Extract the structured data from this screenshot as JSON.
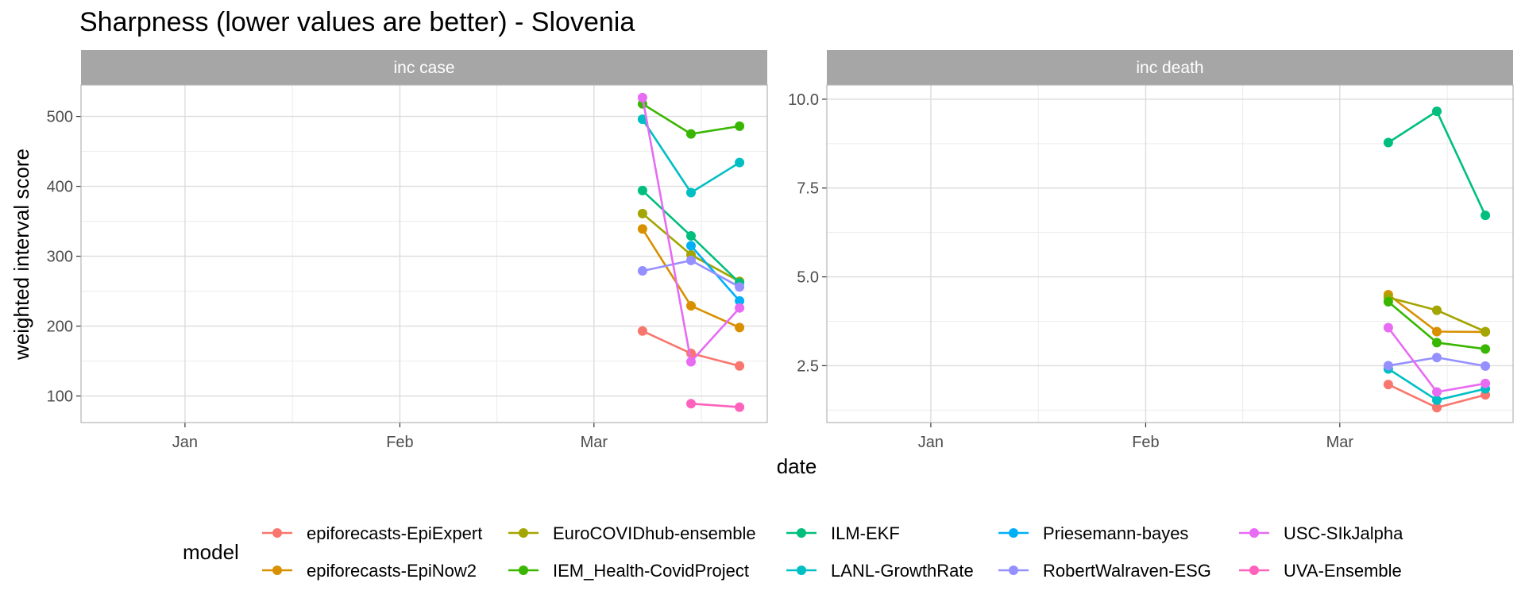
{
  "chart_data": {
    "type": "line",
    "title": "Sharpness (lower values are better) - Slovenia",
    "xlabel": "date",
    "ylabel": "weighted interval score",
    "legend_title": "model",
    "legend_position": "bottom",
    "grid": true,
    "xlim": [
      "2020-12-17",
      "2021-03-26"
    ],
    "x_ticks": [
      {
        "date": "2021-01-01",
        "label": "Jan"
      },
      {
        "date": "2021-02-01",
        "label": "Feb"
      },
      {
        "date": "2021-03-01",
        "label": "Mar"
      }
    ],
    "models": [
      {
        "name": "epiforecasts-EpiExpert",
        "color": "#F8766D"
      },
      {
        "name": "epiforecasts-EpiNow2",
        "color": "#D89000"
      },
      {
        "name": "EuroCOVIDhub-ensemble",
        "color": "#A3A500"
      },
      {
        "name": "IEM_Health-CovidProject",
        "color": "#39B600"
      },
      {
        "name": "ILM-EKF",
        "color": "#00BF7D"
      },
      {
        "name": "LANL-GrowthRate",
        "color": "#00BFC4"
      },
      {
        "name": "Priesemann-bayes",
        "color": "#00B0F6"
      },
      {
        "name": "RobertWalraven-ESG",
        "color": "#9590FF"
      },
      {
        "name": "USC-SIkJalpha",
        "color": "#E76BF3"
      },
      {
        "name": "UVA-Ensemble",
        "color": "#FF62BC"
      }
    ],
    "facets": [
      {
        "strip": "inc case",
        "ylim": [
          62,
          545
        ],
        "y_ticks": [
          100,
          200,
          300,
          400,
          500
        ],
        "series": [
          {
            "name": "epiforecasts-EpiExpert",
            "x": [
              "2021-03-08",
              "2021-03-15",
              "2021-03-22"
            ],
            "y": [
              193,
              161,
              143
            ]
          },
          {
            "name": "epiforecasts-EpiNow2",
            "x": [
              "2021-03-08",
              "2021-03-15",
              "2021-03-22"
            ],
            "y": [
              339,
              229,
              198
            ]
          },
          {
            "name": "EuroCOVIDhub-ensemble",
            "x": [
              "2021-03-08",
              "2021-03-15",
              "2021-03-22"
            ],
            "y": [
              361,
              302,
              264
            ]
          },
          {
            "name": "IEM_Health-CovidProject",
            "x": [
              "2021-03-08",
              "2021-03-15",
              "2021-03-22"
            ],
            "y": [
              518,
              475,
              486
            ]
          },
          {
            "name": "ILM-EKF",
            "x": [
              "2021-03-08",
              "2021-03-15",
              "2021-03-22"
            ],
            "y": [
              394,
              329,
              262
            ]
          },
          {
            "name": "LANL-GrowthRate",
            "x": [
              "2021-03-08",
              "2021-03-15",
              "2021-03-22"
            ],
            "y": [
              496,
              391,
              434
            ]
          },
          {
            "name": "Priesemann-bayes",
            "x": [
              "2021-03-15",
              "2021-03-22"
            ],
            "y": [
              315,
              236
            ]
          },
          {
            "name": "RobertWalraven-ESG",
            "x": [
              "2021-03-08",
              "2021-03-15",
              "2021-03-22"
            ],
            "y": [
              279,
              294,
              256
            ]
          },
          {
            "name": "USC-SIkJalpha",
            "x": [
              "2021-03-08",
              "2021-03-15",
              "2021-03-22"
            ],
            "y": [
              527,
              149,
              226
            ]
          },
          {
            "name": "UVA-Ensemble",
            "x": [
              "2021-03-15",
              "2021-03-22"
            ],
            "y": [
              89,
              84
            ]
          }
        ]
      },
      {
        "strip": "inc death",
        "ylim": [
          0.9,
          10.4
        ],
        "y_ticks": [
          2.5,
          5.0,
          7.5,
          10.0
        ],
        "y_tick_labels": [
          "2.5",
          "5.0",
          "7.5",
          "10.0"
        ],
        "series": [
          {
            "name": "epiforecasts-EpiExpert",
            "x": [
              "2021-03-08",
              "2021-03-15",
              "2021-03-22"
            ],
            "y": [
              1.97,
              1.32,
              1.68
            ]
          },
          {
            "name": "epiforecasts-EpiNow2",
            "x": [
              "2021-03-08",
              "2021-03-15",
              "2021-03-22"
            ],
            "y": [
              4.5,
              3.46,
              3.45
            ]
          },
          {
            "name": "EuroCOVIDhub-ensemble",
            "x": [
              "2021-03-08",
              "2021-03-15",
              "2021-03-22"
            ],
            "y": [
              4.42,
              4.06,
              3.46
            ]
          },
          {
            "name": "IEM_Health-CovidProject",
            "x": [
              "2021-03-08",
              "2021-03-15",
              "2021-03-22"
            ],
            "y": [
              4.3,
              3.15,
              2.97
            ]
          },
          {
            "name": "ILM-EKF",
            "x": [
              "2021-03-08",
              "2021-03-15",
              "2021-03-22"
            ],
            "y": [
              8.78,
              9.66,
              6.73
            ]
          },
          {
            "name": "LANL-GrowthRate",
            "x": [
              "2021-03-08",
              "2021-03-15",
              "2021-03-22"
            ],
            "y": [
              2.41,
              1.53,
              1.85
            ]
          },
          {
            "name": "RobertWalraven-ESG",
            "x": [
              "2021-03-08",
              "2021-03-15",
              "2021-03-22"
            ],
            "y": [
              2.5,
              2.73,
              2.49
            ]
          },
          {
            "name": "USC-SIkJalpha",
            "x": [
              "2021-03-08",
              "2021-03-15",
              "2021-03-22"
            ],
            "y": [
              3.57,
              1.76,
              2.0
            ]
          }
        ]
      }
    ]
  }
}
